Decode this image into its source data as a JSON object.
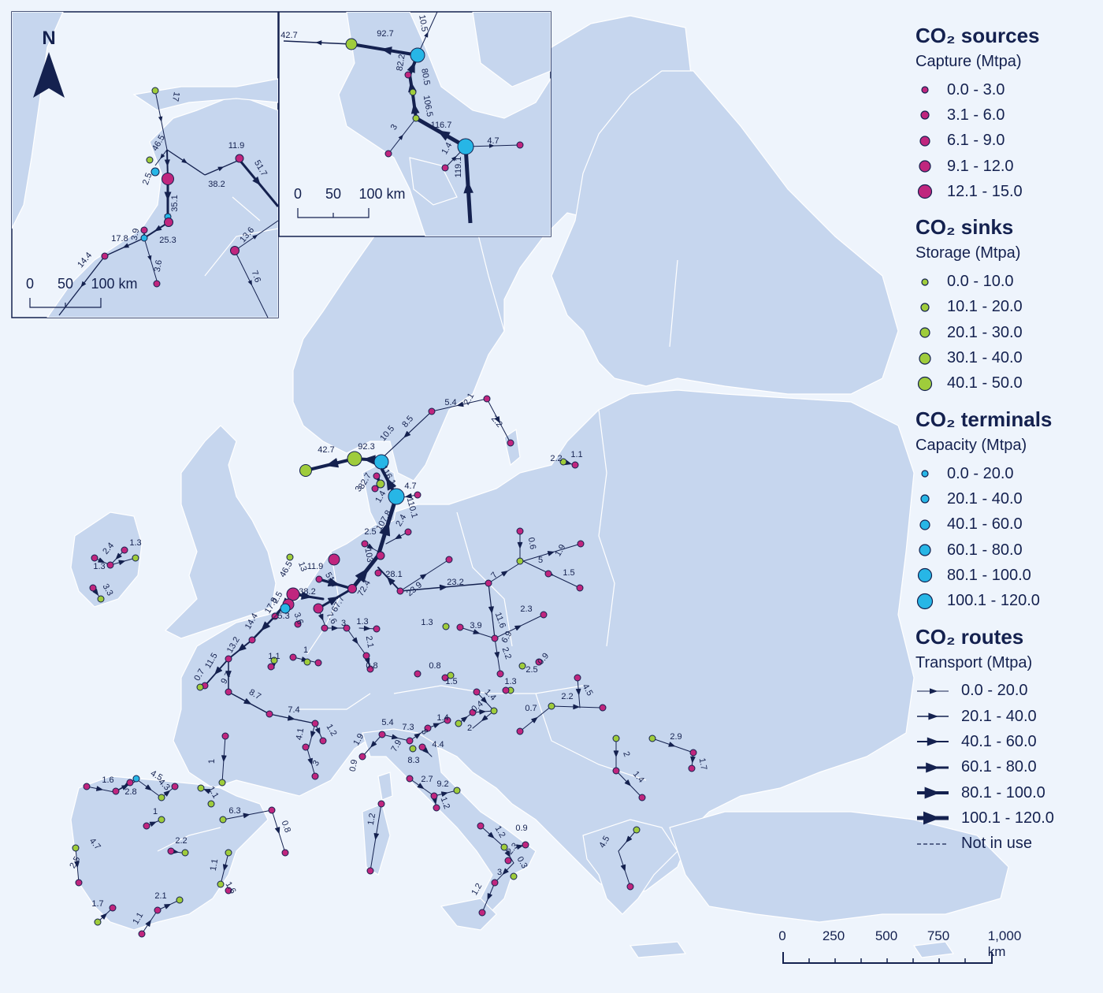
{
  "legend": {
    "sources": {
      "title": "CO₂ sources",
      "subtitle": "Capture (Mtpa)",
      "items": [
        "0.0 - 3.0",
        "3.1 - 6.0",
        "6.1 - 9.0",
        "9.1 - 12.0",
        "12.1 - 15.0"
      ]
    },
    "sinks": {
      "title": "CO₂ sinks",
      "subtitle": "Storage (Mtpa)",
      "items": [
        "0.0 - 10.0",
        "10.1 - 20.0",
        "20.1 - 30.0",
        "30.1 - 40.0",
        "40.1 - 50.0"
      ]
    },
    "terminals": {
      "title": "CO₂ terminals",
      "subtitle": "Capacity (Mtpa)",
      "items": [
        "0.0 - 20.0",
        "20.1 - 40.0",
        "40.1 - 60.0",
        "60.1 - 80.0",
        "80.1 - 100.0",
        "100.1 - 120.0"
      ]
    },
    "routes": {
      "title": "CO₂ routes",
      "subtitle": "Transport (Mtpa)",
      "items": [
        "0.0 - 20.0",
        "20.1 - 40.0",
        "40.1 - 60.0",
        "60.1 - 80.0",
        "80.1 - 100.0",
        "100.1 - 120.0"
      ],
      "not_in_use": "Not in use"
    }
  },
  "scale_bar": {
    "labels": [
      "0",
      "250",
      "500",
      "750",
      "1,000 km"
    ]
  },
  "inset_left": {
    "north": "N",
    "scale_labels": [
      "0",
      "50",
      "100 km"
    ],
    "flow_labels": [
      "17",
      "46.5",
      "2.5",
      "11.9",
      "38.2",
      "51.7",
      "35.1",
      "25.3",
      "3.9",
      "17.8",
      "14.4",
      "3.6",
      "13.6",
      "7.6"
    ]
  },
  "inset_right": {
    "scale_labels": [
      "0",
      "50",
      "100 km"
    ],
    "flow_labels": [
      "42.7",
      "92.7",
      "10.5",
      "82.2",
      "80.5",
      "106.5",
      "116.7",
      "3",
      "1.4",
      "119.1",
      "4.7"
    ]
  },
  "map_flow_labels": [
    "5.4",
    "2.1",
    "8.5",
    "2.2",
    "10.5",
    "92.3",
    "42.7",
    "82.7",
    "116.1",
    "3",
    "4.7",
    "1.4",
    "110.1",
    "107.8",
    "2.4",
    "2.5",
    "103",
    "28.1",
    "72.4",
    "67.7",
    "38.2",
    "46.5",
    "13",
    "11.9",
    "51.7",
    "2.5",
    "17.8",
    "25.3",
    "3.6",
    "14.4",
    "13.2",
    "11.5",
    "0.7",
    "9.7",
    "8.7",
    "7.4",
    "4.1",
    "3",
    "1.2",
    "7.6",
    "3",
    "1.3",
    "2.1",
    "0.8",
    "1.1",
    "1",
    "1.1",
    "2.2",
    "23.9",
    "23.2",
    "7",
    "0.6",
    "5",
    "1.9",
    "1.5",
    "11.6",
    "6.9",
    "2.2",
    "3.9",
    "2.3",
    "1.3",
    "0.8",
    "1.5",
    "0.9",
    "2.5",
    "1.3",
    "1.4",
    "0.4",
    "2",
    "1.4",
    "5.4",
    "7.3",
    "3",
    "7.9",
    "8.3",
    "4.4",
    "1.9",
    "0.9",
    "2.7",
    "9.2",
    "1.2",
    "1.2",
    "1.2",
    "0.9",
    "2.3",
    "0.3",
    "3",
    "1.2",
    "0.7",
    "2.2",
    "4.5",
    "2",
    "1.4",
    "2.9",
    "1.7",
    "4.5",
    "1",
    "1.6",
    "2.8",
    "4.5",
    "4.3",
    "1.1",
    "6.3",
    "0.8",
    "1",
    "2.2",
    "1.1",
    "1.6",
    "4.7",
    "2.5",
    "1.7",
    "2.1",
    "1.1",
    "2.4",
    "1.3",
    "1.3",
    "3.3"
  ],
  "colors": {
    "background": "#eef4fc",
    "land": "#c6d6ee",
    "water": "#eef4fc",
    "border": "#ffffff",
    "source": "#c0267e",
    "sink": "#9fcc3b",
    "terminal": "#27b6e6",
    "route": "#14214f"
  }
}
